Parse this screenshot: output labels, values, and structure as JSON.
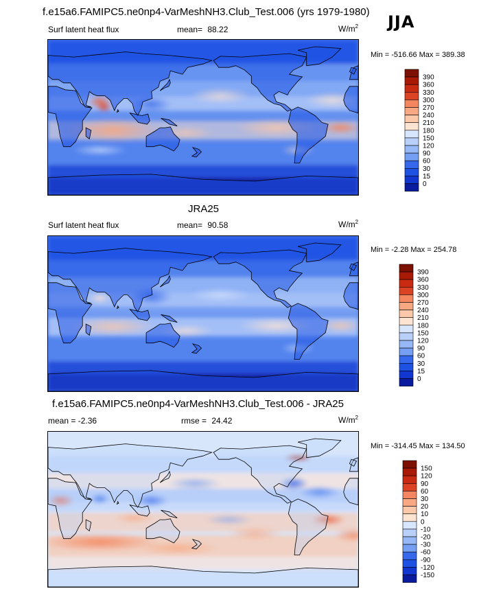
{
  "season": "JJA",
  "colors": {
    "scale_main": [
      "#0a1b9e",
      "#1236d0",
      "#1e52e3",
      "#3568ea",
      "#5384ee",
      "#759ff2",
      "#97b8f6",
      "#b8d0fa",
      "#d8e6fd",
      "#fde3d2",
      "#fbc8aa",
      "#f8a882",
      "#f4875f",
      "#ea6440",
      "#db4324",
      "#c82a12",
      "#a81906",
      "#7c1002"
    ],
    "scale_diff": [
      "#0a1b9e",
      "#1236d0",
      "#1e52e3",
      "#3568ea",
      "#5384ee",
      "#759ff2",
      "#97b8f6",
      "#b8d0fa",
      "#d8e6fd",
      "#fde3d2",
      "#fbc8aa",
      "#f8a882",
      "#f4875f",
      "#ea6440",
      "#db4324",
      "#c82a12",
      "#a81906",
      "#7c1002"
    ],
    "land_line": "#000000"
  },
  "panels": [
    {
      "title": "f.e15a6.FAMIPC5.ne0np4-VarMeshNH3.Club_Test.006 (yrs 1979-1980)",
      "left_label": "Surf latent heat flux",
      "stat_label": "mean=",
      "stat_value": "88.22",
      "units": "W/m",
      "units_sup": "2",
      "minmax": "Min = -516.66 Max = 389.38"
    },
    {
      "title": "JRA25",
      "left_label": "Surf latent heat flux",
      "stat_label": "mean=",
      "stat_value": "90.58",
      "units": "W/m",
      "units_sup": "2",
      "minmax": "Min =  -2.28 Max = 254.78"
    },
    {
      "title": "f.e15a6.FAMIPC5.ne0np4-VarMeshNH3.Club_Test.006 - JRA25",
      "left_label": "mean =  -2.36",
      "stat_label": "rmse =",
      "stat_value": "24.42",
      "units": "W/m",
      "units_sup": "2",
      "minmax": "Min = -314.45 Max = 134.50"
    }
  ],
  "chart_data": [
    {
      "type": "heatmap",
      "title": "f.e15a6.FAMIPC5.ne0np4-VarMeshNH3.Club_Test.006 (yrs 1979-1980)",
      "field": "Surf latent heat flux",
      "units": "W/m2",
      "mean": 88.22,
      "min": -516.66,
      "max": 389.38,
      "colorbar_levels": [
        0,
        15,
        30,
        60,
        90,
        120,
        150,
        180,
        210,
        240,
        270,
        300,
        330,
        360,
        390
      ],
      "colorbar_tick_labels": [
        "390",
        "360",
        "330",
        "300",
        "270",
        "240",
        "210",
        "180",
        "150",
        "120",
        "90",
        "60",
        "30",
        "15",
        "0"
      ]
    },
    {
      "type": "heatmap",
      "title": "JRA25",
      "field": "Surf latent heat flux",
      "units": "W/m2",
      "mean": 90.58,
      "min": -2.28,
      "max": 254.78,
      "colorbar_levels": [
        0,
        15,
        30,
        60,
        90,
        120,
        150,
        180,
        210,
        240,
        270,
        300,
        330,
        360,
        390
      ],
      "colorbar_tick_labels": [
        "390",
        "360",
        "330",
        "300",
        "270",
        "240",
        "210",
        "180",
        "150",
        "120",
        "90",
        "60",
        "30",
        "15",
        "0"
      ]
    },
    {
      "type": "heatmap",
      "title": "f.e15a6.FAMIPC5.ne0np4-VarMeshNH3.Club_Test.006 - JRA25",
      "units": "W/m2",
      "mean": -2.36,
      "rmse": 24.42,
      "min": -314.45,
      "max": 134.5,
      "colorbar_levels": [
        -150,
        -120,
        -90,
        -60,
        -30,
        -20,
        -10,
        0,
        10,
        20,
        30,
        60,
        90,
        120,
        150
      ],
      "colorbar_tick_labels": [
        "150",
        "120",
        "90",
        "60",
        "30",
        "20",
        "10",
        "0",
        "-10",
        "-20",
        "-30",
        "-60",
        "-90",
        "-120",
        "-150"
      ]
    }
  ]
}
